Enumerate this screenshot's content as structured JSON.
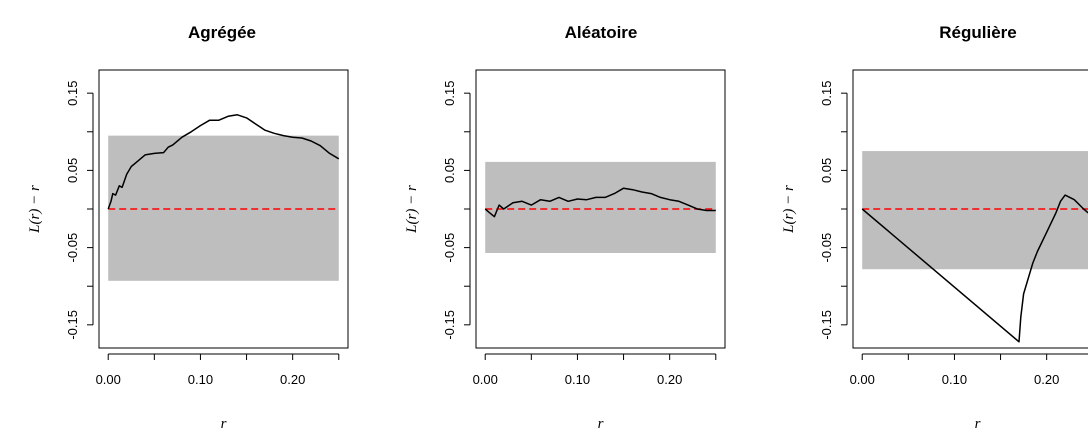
{
  "chart_data": [
    {
      "type": "line",
      "title": "Agrégée",
      "xlabel": "r",
      "ylabel": "L(r) − r",
      "xlim": [
        0,
        0.25
      ],
      "ylim": [
        -0.18,
        0.18
      ],
      "xticks": [
        "0.00",
        "0.10",
        "0.20"
      ],
      "yticks": [
        "-0.15",
        "-0.05",
        "0.05",
        "0.15"
      ],
      "envelope": {
        "lower": -0.093,
        "upper": 0.095,
        "color": "#bebebe"
      },
      "reference": {
        "y": 0,
        "color": "#ff0000",
        "style": "dashed"
      },
      "series": [
        {
          "color": "#000000",
          "x": [
            0.0,
            0.003,
            0.005,
            0.008,
            0.012,
            0.015,
            0.02,
            0.025,
            0.03,
            0.035,
            0.04,
            0.05,
            0.06,
            0.065,
            0.07,
            0.08,
            0.09,
            0.1,
            0.11,
            0.12,
            0.13,
            0.14,
            0.15,
            0.16,
            0.17,
            0.18,
            0.19,
            0.2,
            0.21,
            0.22,
            0.23,
            0.24,
            0.25
          ],
          "y": [
            0.0,
            0.01,
            0.02,
            0.018,
            0.03,
            0.028,
            0.045,
            0.055,
            0.06,
            0.065,
            0.07,
            0.072,
            0.073,
            0.08,
            0.083,
            0.093,
            0.1,
            0.108,
            0.115,
            0.115,
            0.12,
            0.122,
            0.118,
            0.11,
            0.102,
            0.098,
            0.095,
            0.093,
            0.092,
            0.088,
            0.082,
            0.072,
            0.065
          ]
        }
      ]
    },
    {
      "type": "line",
      "title": "Aléatoire",
      "xlabel": "r",
      "ylabel": "L(r) − r",
      "xlim": [
        0,
        0.25
      ],
      "ylim": [
        -0.18,
        0.18
      ],
      "xticks": [
        "0.00",
        "0.10",
        "0.20"
      ],
      "yticks": [
        "-0.15",
        "-0.05",
        "0.05",
        "0.15"
      ],
      "envelope": {
        "lower": -0.057,
        "upper": 0.061,
        "color": "#bebebe"
      },
      "reference": {
        "y": 0,
        "color": "#ff0000",
        "style": "dashed"
      },
      "series": [
        {
          "color": "#000000",
          "x": [
            0.0,
            0.005,
            0.01,
            0.015,
            0.02,
            0.03,
            0.04,
            0.05,
            0.06,
            0.07,
            0.08,
            0.09,
            0.1,
            0.11,
            0.12,
            0.13,
            0.14,
            0.15,
            0.16,
            0.17,
            0.18,
            0.19,
            0.2,
            0.21,
            0.22,
            0.23,
            0.24,
            0.25
          ],
          "y": [
            0.0,
            -0.005,
            -0.01,
            0.005,
            0.0,
            0.008,
            0.01,
            0.005,
            0.012,
            0.01,
            0.015,
            0.01,
            0.013,
            0.012,
            0.015,
            0.015,
            0.02,
            0.027,
            0.025,
            0.022,
            0.02,
            0.015,
            0.012,
            0.01,
            0.005,
            0.0,
            -0.002,
            -0.002
          ]
        }
      ]
    },
    {
      "type": "line",
      "title": "Régulière",
      "xlabel": "r",
      "ylabel": "L(r) − r",
      "xlim": [
        0,
        0.25
      ],
      "ylim": [
        -0.18,
        0.18
      ],
      "xticks": [
        "0.00",
        "0.10",
        "0.20"
      ],
      "yticks": [
        "-0.15",
        "-0.05",
        "0.05",
        "0.15"
      ],
      "envelope": {
        "lower": -0.078,
        "upper": 0.075,
        "color": "#bebebe"
      },
      "reference": {
        "y": 0,
        "color": "#ff0000",
        "style": "dashed"
      },
      "series": [
        {
          "color": "#000000",
          "x": [
            0.0,
            0.17,
            0.172,
            0.175,
            0.18,
            0.185,
            0.19,
            0.2,
            0.21,
            0.215,
            0.22,
            0.23,
            0.24,
            0.25
          ],
          "y": [
            0.0,
            -0.172,
            -0.14,
            -0.11,
            -0.09,
            -0.07,
            -0.055,
            -0.03,
            -0.005,
            0.01,
            0.018,
            0.012,
            0.0,
            -0.01
          ]
        }
      ]
    }
  ]
}
